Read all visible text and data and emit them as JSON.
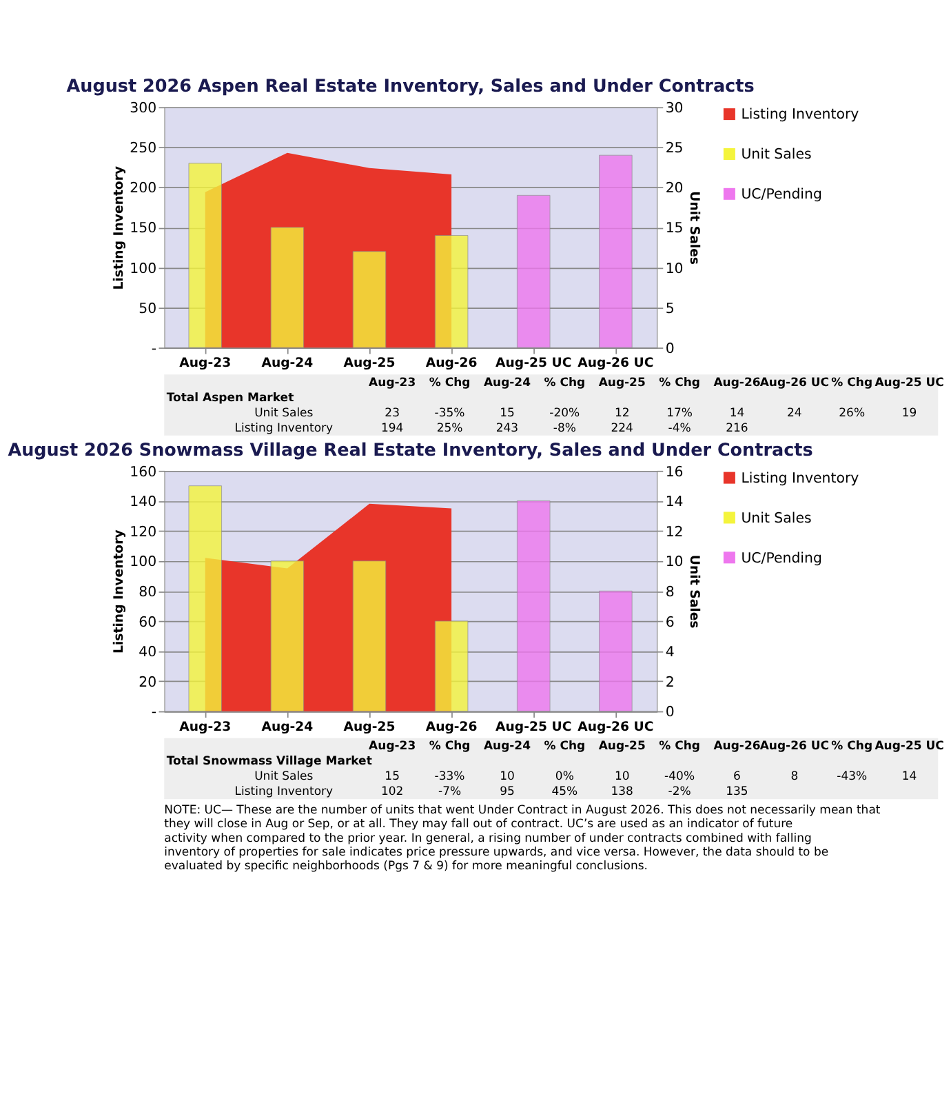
{
  "chart_data": [
    {
      "type": "bar",
      "title": "August 2026 Aspen Real Estate Inventory, Sales and Under Contracts",
      "categories": [
        "Aug-23",
        "Aug-24",
        "Aug-25",
        "Aug-26",
        "Aug-25 UC",
        "Aug-26 UC"
      ],
      "ylabel": "Listing Inventory",
      "y2label": "Unit Sales",
      "ylim": [
        0,
        300
      ],
      "yticks": [
        {
          "value": 0,
          "label": "-"
        },
        50,
        100,
        150,
        200,
        250,
        300
      ],
      "y2lim": [
        0,
        30
      ],
      "y2ticks": [
        0,
        5,
        10,
        15,
        20,
        25,
        30
      ],
      "grid": "y",
      "legend": "right",
      "series": [
        {
          "name": "Listing Inventory",
          "type": "area",
          "color": "#e8352a",
          "values": [
            194,
            243,
            224,
            216,
            null,
            null
          ]
        },
        {
          "name": "Unit Sales",
          "axis": "y2",
          "color": "#f4f43c",
          "values": [
            23,
            15,
            12,
            14,
            null,
            null
          ]
        },
        {
          "name": "UC/Pending",
          "axis": "y2",
          "color": "#ee77ee",
          "values": [
            null,
            null,
            null,
            null,
            19,
            24
          ]
        }
      ],
      "annotations": [
        "Aug-23",
        "% Chg",
        "Aug-24",
        "% Chg",
        "Aug-25",
        "% Chg",
        "Aug-26",
        "Aug-26 UC",
        "% Chg",
        "Aug-25 UC",
        "Total Aspen Market",
        "Unit Sales",
        "23",
        "-35%",
        "15",
        "-20%",
        "12",
        "17%",
        "14",
        "24",
        "26%",
        "19",
        "Listing Inventory",
        "194",
        "25%",
        "243",
        "-8%",
        "224",
        "-4%",
        "216"
      ]
    },
    {
      "type": "bar",
      "title": "August 2026 Snowmass Village Real Estate Inventory, Sales and Under Contracts",
      "categories": [
        "Aug-23",
        "Aug-24",
        "Aug-25",
        "Aug-26",
        "Aug-25 UC",
        "Aug-26 UC"
      ],
      "ylabel": "Listing Inventory",
      "y2label": "Unit Sales",
      "ylim": [
        0,
        160
      ],
      "yticks": [
        {
          "value": 0,
          "label": "-"
        },
        20,
        40,
        60,
        80,
        100,
        120,
        140,
        160
      ],
      "y2lim": [
        0,
        16
      ],
      "y2ticks": [
        0,
        2,
        4,
        6,
        8,
        10,
        12,
        14,
        16
      ],
      "grid": "y",
      "legend": "right",
      "series": [
        {
          "name": "Listing Inventory",
          "type": "area",
          "color": "#e8352a",
          "values": [
            102,
            95,
            138,
            135,
            null,
            null
          ]
        },
        {
          "name": "Unit Sales",
          "axis": "y2",
          "color": "#f4f43c",
          "values": [
            15,
            10,
            10,
            6,
            null,
            null
          ]
        },
        {
          "name": "UC/Pending",
          "axis": "y2",
          "color": "#ee77ee",
          "values": [
            null,
            null,
            null,
            null,
            14,
            8
          ]
        }
      ],
      "annotations": [
        "Aug-23",
        "% Chg",
        "Aug-24",
        "% Chg",
        "Aug-25",
        "% Chg",
        "Aug-26",
        "Aug-26 UC",
        "% Chg",
        "Aug-25 UC",
        "Total Snowmass Village Market",
        "Unit Sales",
        "15",
        "-33%",
        "10",
        "0%",
        "10",
        "-40%",
        "6",
        "8",
        "-43%",
        "14",
        "Listing Inventory",
        "102",
        "-7%",
        "95",
        "45%",
        "138",
        "-2%",
        "135",
        "NOTE: UC— These are the number of units that went Under Contract in August 2026. This does not necessarily mean that they will close in Aug or Sep, or at all. They may fall out of contract. UC’s are used as an indicator of future activity when compared to the prior year. In general, a rising number of under contracts combined with falling inventory of properties for sale indicates price pressure upwards, and vice versa. However, the data should to be evaluated by specific neighborhoods (Pgs 7 & 9) for more meaningful conclusions."
      ]
    }
  ]
}
